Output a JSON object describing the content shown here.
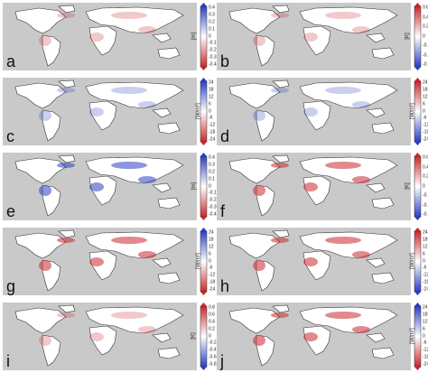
{
  "panels": [
    {
      "letter": "a",
      "unit": "[m]",
      "ticks": [
        "0.4",
        "0.3",
        "0.2",
        "0.1",
        "0",
        "-0.1",
        "-0.2",
        "-0.3",
        "-0.4"
      ],
      "scheme": "red-bottom"
    },
    {
      "letter": "b",
      "unit": "[K]",
      "ticks": [
        "0.6",
        "0.4",
        "0.2",
        "0",
        "-0.2",
        "-0.4",
        "-0.6"
      ],
      "scheme": "blue-bottom"
    },
    {
      "letter": "c",
      "unit": "[W/m²]",
      "ticks": [
        "24",
        "18",
        "12",
        "6",
        "0",
        "-6",
        "-12",
        "-18",
        "-24"
      ],
      "scheme": "red-bottom"
    },
    {
      "letter": "d",
      "unit": "[W/m²]",
      "ticks": [
        "24",
        "18",
        "12",
        "6",
        "0",
        "-6",
        "-12",
        "-18",
        "-24"
      ],
      "scheme": "blue-bottom"
    },
    {
      "letter": "e",
      "unit": "[m]",
      "ticks": [
        "0.4",
        "0.3",
        "0.2",
        "0.1",
        "0",
        "-0.1",
        "-0.2",
        "-0.3",
        "-0.4"
      ],
      "scheme": "red-bottom"
    },
    {
      "letter": "f",
      "unit": "[K]",
      "ticks": [
        "0.6",
        "0.4",
        "0.2",
        "0",
        "-0.2",
        "-0.4",
        "-0.6"
      ],
      "scheme": "blue-bottom"
    },
    {
      "letter": "g",
      "unit": "[W/m²]",
      "ticks": [
        "24",
        "18",
        "12",
        "6",
        "0",
        "-6",
        "-12",
        "-18",
        "-24"
      ],
      "scheme": "red-bottom"
    },
    {
      "letter": "h",
      "unit": "[W/m²]",
      "ticks": [
        "24",
        "18",
        "12",
        "6",
        "0",
        "-6",
        "-12",
        "-18",
        "-24"
      ],
      "scheme": "blue-bottom"
    },
    {
      "letter": "i",
      "unit": "[K]",
      "ticks": [
        "0.8",
        "0.6",
        "0.4",
        "0.2",
        "0",
        "-0.2",
        "-0.4",
        "-0.6",
        "-0.8"
      ],
      "scheme": "blue-bottom"
    },
    {
      "letter": "j",
      "unit": "[W/m²]",
      "ticks": [
        "24",
        "18",
        "12",
        "6",
        "0",
        "-6",
        "-12",
        "-18",
        "-24"
      ],
      "scheme": "red-bottom"
    }
  ],
  "colors": {
    "ocean": "#c9c9c9",
    "land": "#ffffff",
    "red": "#c8282d",
    "blue": "#2c3fc0"
  }
}
